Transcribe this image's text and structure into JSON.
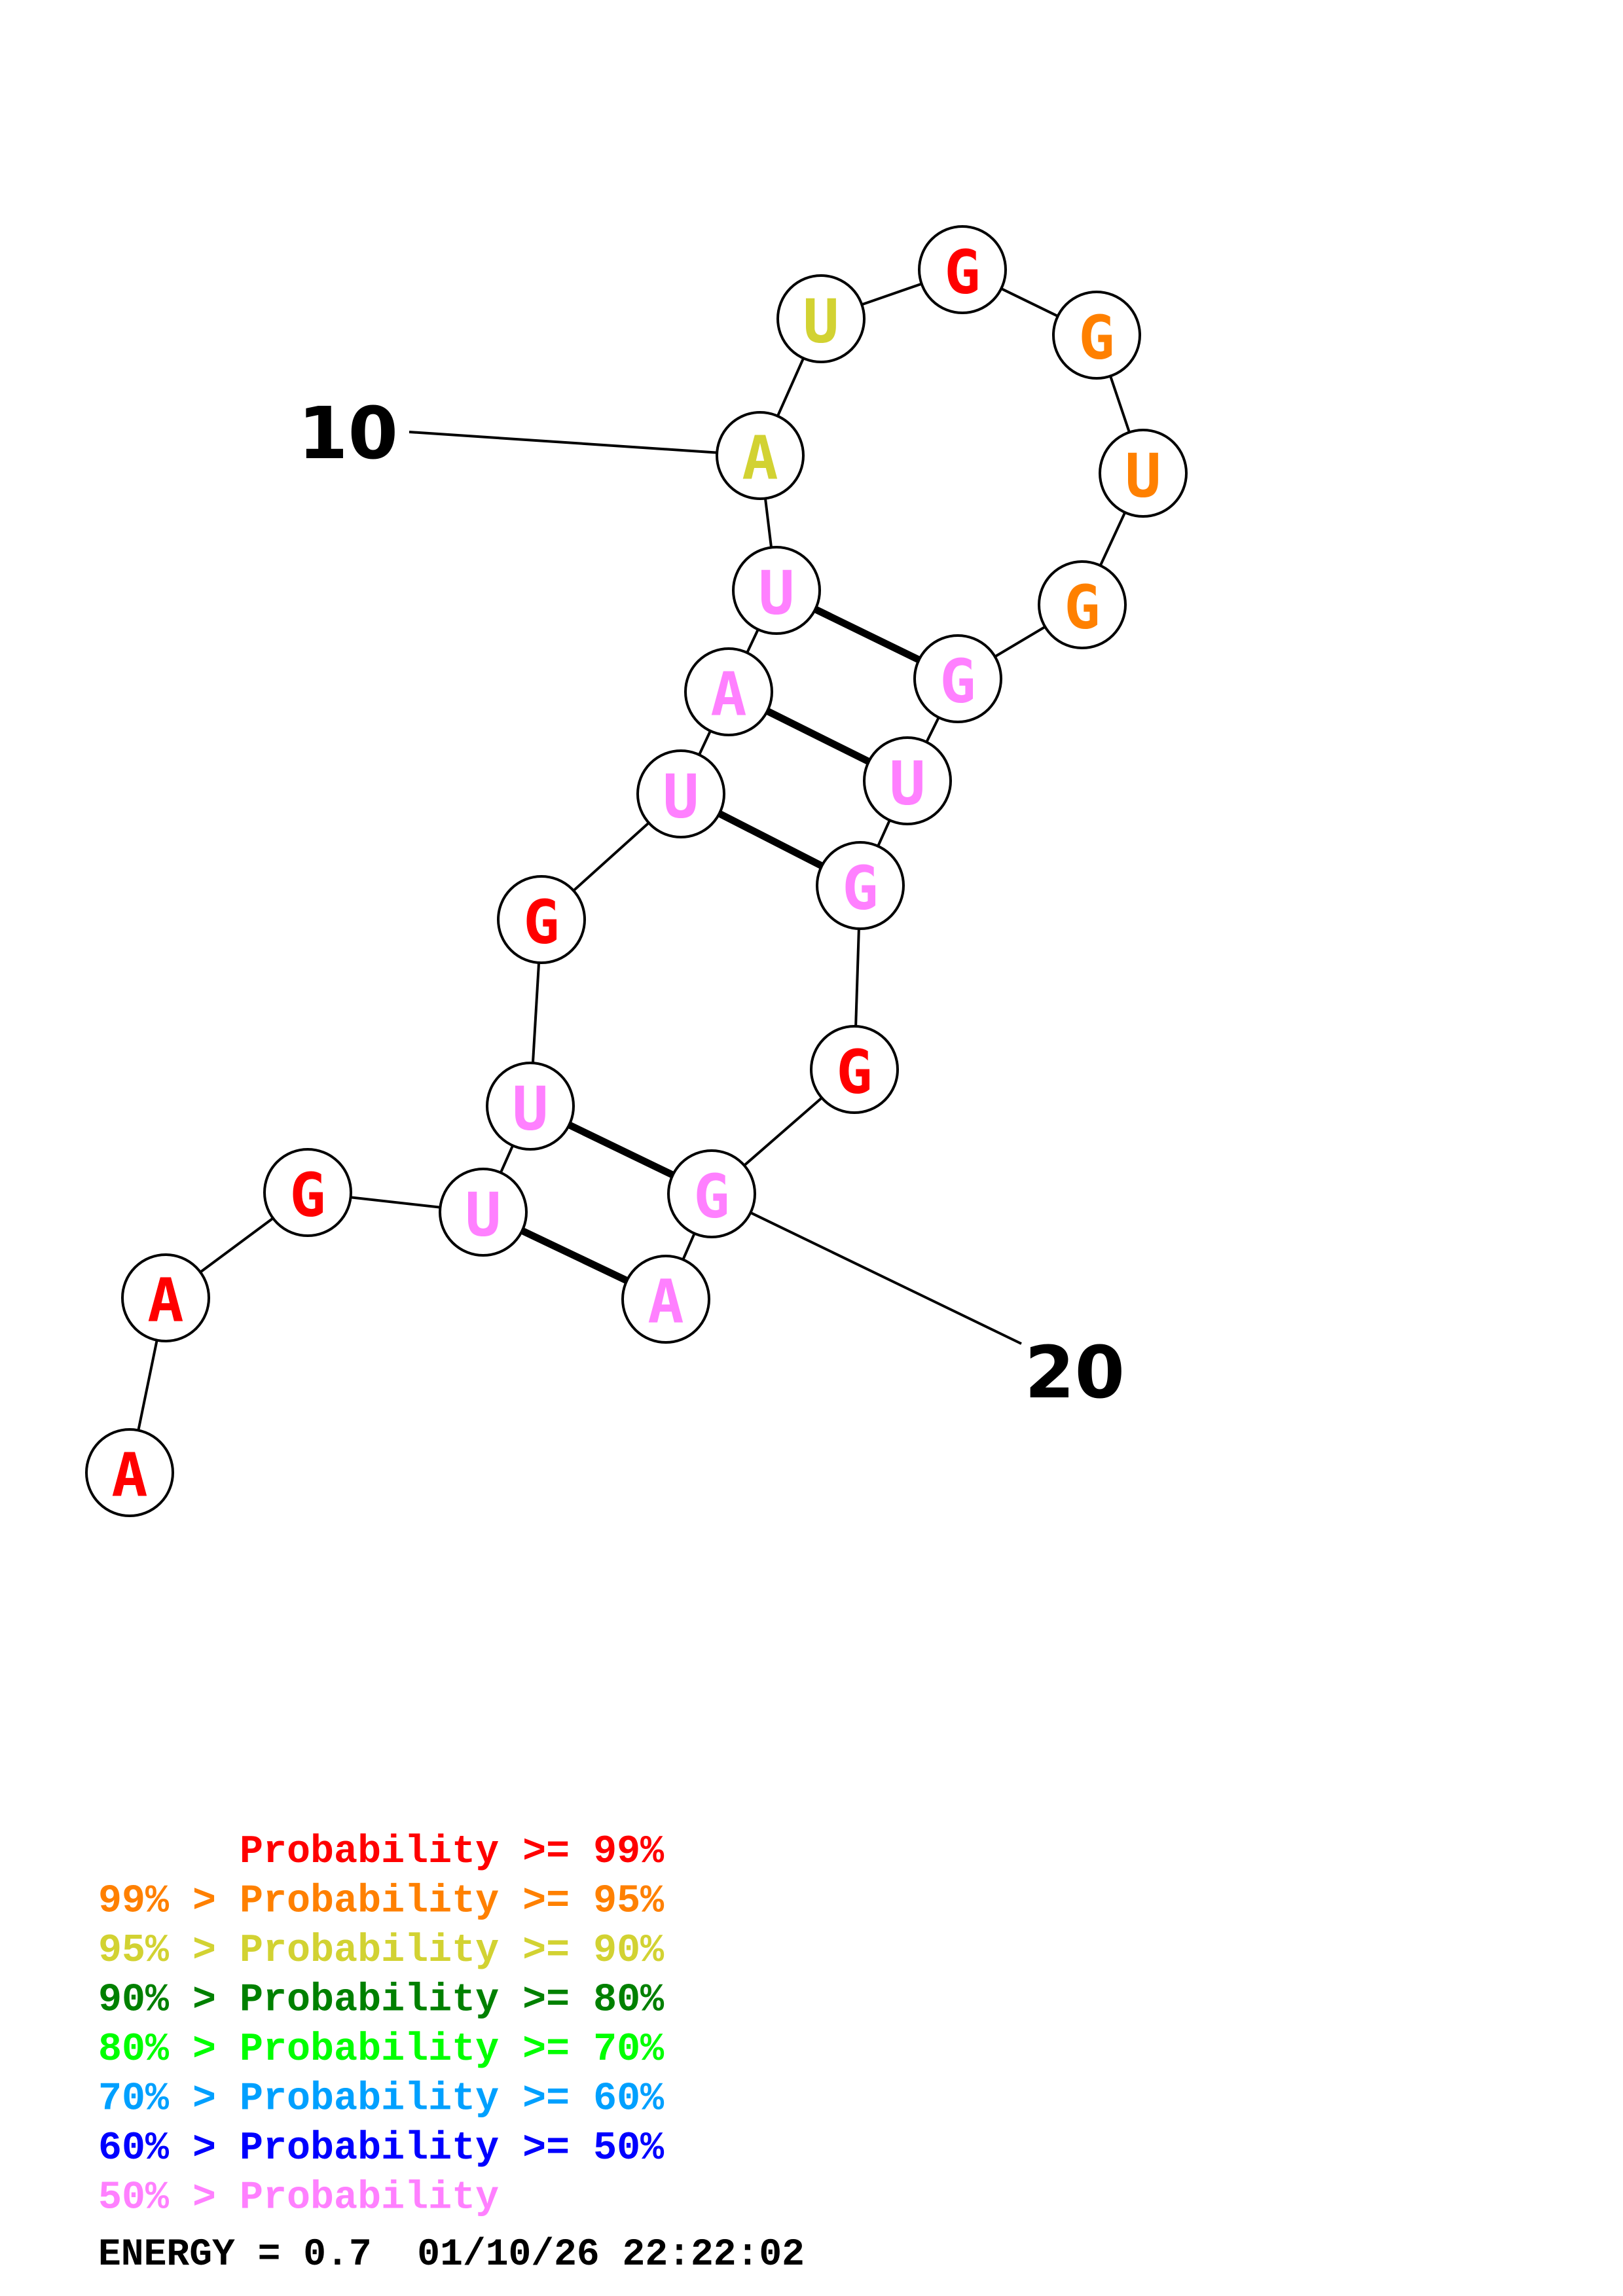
{
  "structure": {
    "nucleotides": [
      {
        "base": "A",
        "prob_class": 0
      },
      {
        "base": "A",
        "prob_class": 0
      },
      {
        "base": "G",
        "prob_class": 0
      },
      {
        "base": "U",
        "prob_class": 7
      },
      {
        "base": "U",
        "prob_class": 7
      },
      {
        "base": "G",
        "prob_class": 0
      },
      {
        "base": "U",
        "prob_class": 7
      },
      {
        "base": "A",
        "prob_class": 7
      },
      {
        "base": "U",
        "prob_class": 7
      },
      {
        "base": "A",
        "prob_class": 2
      },
      {
        "base": "U",
        "prob_class": 2
      },
      {
        "base": "G",
        "prob_class": 0
      },
      {
        "base": "G",
        "prob_class": 1
      },
      {
        "base": "U",
        "prob_class": 1
      },
      {
        "base": "G",
        "prob_class": 1
      },
      {
        "base": "G",
        "prob_class": 7
      },
      {
        "base": "U",
        "prob_class": 7
      },
      {
        "base": "G",
        "prob_class": 7
      },
      {
        "base": "G",
        "prob_class": 0
      },
      {
        "base": "G",
        "prob_class": 7
      },
      {
        "base": "A",
        "prob_class": 7
      }
    ],
    "pairs": [
      [
        4,
        21
      ],
      [
        5,
        20
      ],
      [
        7,
        18
      ],
      [
        8,
        17
      ],
      [
        9,
        16
      ]
    ],
    "position_labels": [
      {
        "index": 10,
        "text": "10"
      },
      {
        "index": 20,
        "text": "20"
      }
    ]
  },
  "legend": {
    "lines": [
      {
        "text": "      Probability >= 99%",
        "color": "#ff0000"
      },
      {
        "text": "99% > Probability >= 95%",
        "color": "#ff8000"
      },
      {
        "text": "95% > Probability >= 90%",
        "color": "#d2d232"
      },
      {
        "text": "90% > Probability >= 80%",
        "color": "#008000"
      },
      {
        "text": "80% > Probability >= 70%",
        "color": "#00ff00"
      },
      {
        "text": "70% > Probability >= 60%",
        "color": "#00a0ff"
      },
      {
        "text": "60% > Probability >= 50%",
        "color": "#0000ff"
      },
      {
        "text": "50% > Probability",
        "color": "#ff80ff"
      }
    ]
  },
  "footer": {
    "text": "ENERGY = 0.7  01/10/26 22:22:02"
  }
}
